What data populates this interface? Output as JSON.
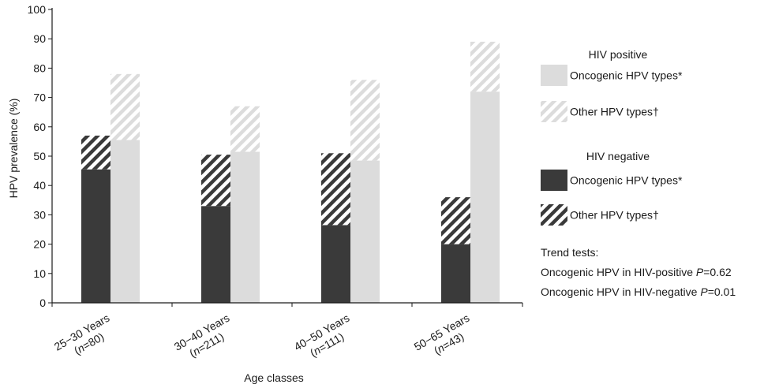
{
  "chart_data": {
    "type": "bar",
    "stacked": true,
    "grouped": true,
    "xlabel": "Age classes",
    "ylabel": "HPV prevalence (%)",
    "ylim": [
      0,
      100
    ],
    "yticks": [
      0,
      10,
      20,
      30,
      40,
      50,
      60,
      70,
      80,
      90,
      100
    ],
    "grid": false,
    "categories": [
      {
        "label": "25−30 Years",
        "n_prefix": "(",
        "n_italic": "n",
        "n_suffix": "=80)"
      },
      {
        "label": "30−40 Years",
        "n_prefix": "(",
        "n_italic": "n",
        "n_suffix": "=211)"
      },
      {
        "label": "40−50 Years",
        "n_prefix": "(",
        "n_italic": "n",
        "n_suffix": "=111)"
      },
      {
        "label": "50−65 Years",
        "n_prefix": "(",
        "n_italic": "n",
        "n_suffix": "=43)"
      }
    ],
    "groups": [
      {
        "name": "HIV negative",
        "segments": [
          {
            "name": "Oncogenic HPV types*",
            "pattern": "solid",
            "color": "#3a3a3a",
            "values": [
              45.5,
              33,
              26.5,
              20
            ]
          },
          {
            "name": "Other HPV types†",
            "pattern": "hatch-dark",
            "color": "#3a3a3a",
            "values": [
              11.5,
              17.5,
              24.5,
              16
            ]
          }
        ]
      },
      {
        "name": "HIV positive",
        "segments": [
          {
            "name": "Oncogenic HPV types*",
            "pattern": "solid",
            "color": "#dcdcdc",
            "values": [
              55.5,
              51.5,
              48.5,
              72
            ]
          },
          {
            "name": "Other HPV types†",
            "pattern": "hatch-light",
            "color": "#dcdcdc",
            "values": [
              22.5,
              15.5,
              27.5,
              17
            ]
          }
        ]
      }
    ],
    "legend": {
      "placement": "right",
      "sections": [
        {
          "title": "HIV positive",
          "items": [
            {
              "label": "Oncogenic HPV types*",
              "pattern": "solid-light"
            },
            {
              "label": "Other HPV types†",
              "pattern": "hatch-light"
            }
          ]
        },
        {
          "title": "HIV negative",
          "items": [
            {
              "label": "Oncogenic HPV types*",
              "pattern": "solid-dark"
            },
            {
              "label": "Other HPV types†",
              "pattern": "hatch-dark"
            }
          ]
        }
      ]
    },
    "annotations": {
      "heading": "Trend tests:",
      "lines": [
        {
          "text": "Oncogenic HPV in HIV-positive ",
          "p": "P",
          "value": "=0.62"
        },
        {
          "text": "Oncogenic HPV in HIV-negative ",
          "p": "P",
          "value": "=0.01"
        }
      ]
    }
  }
}
